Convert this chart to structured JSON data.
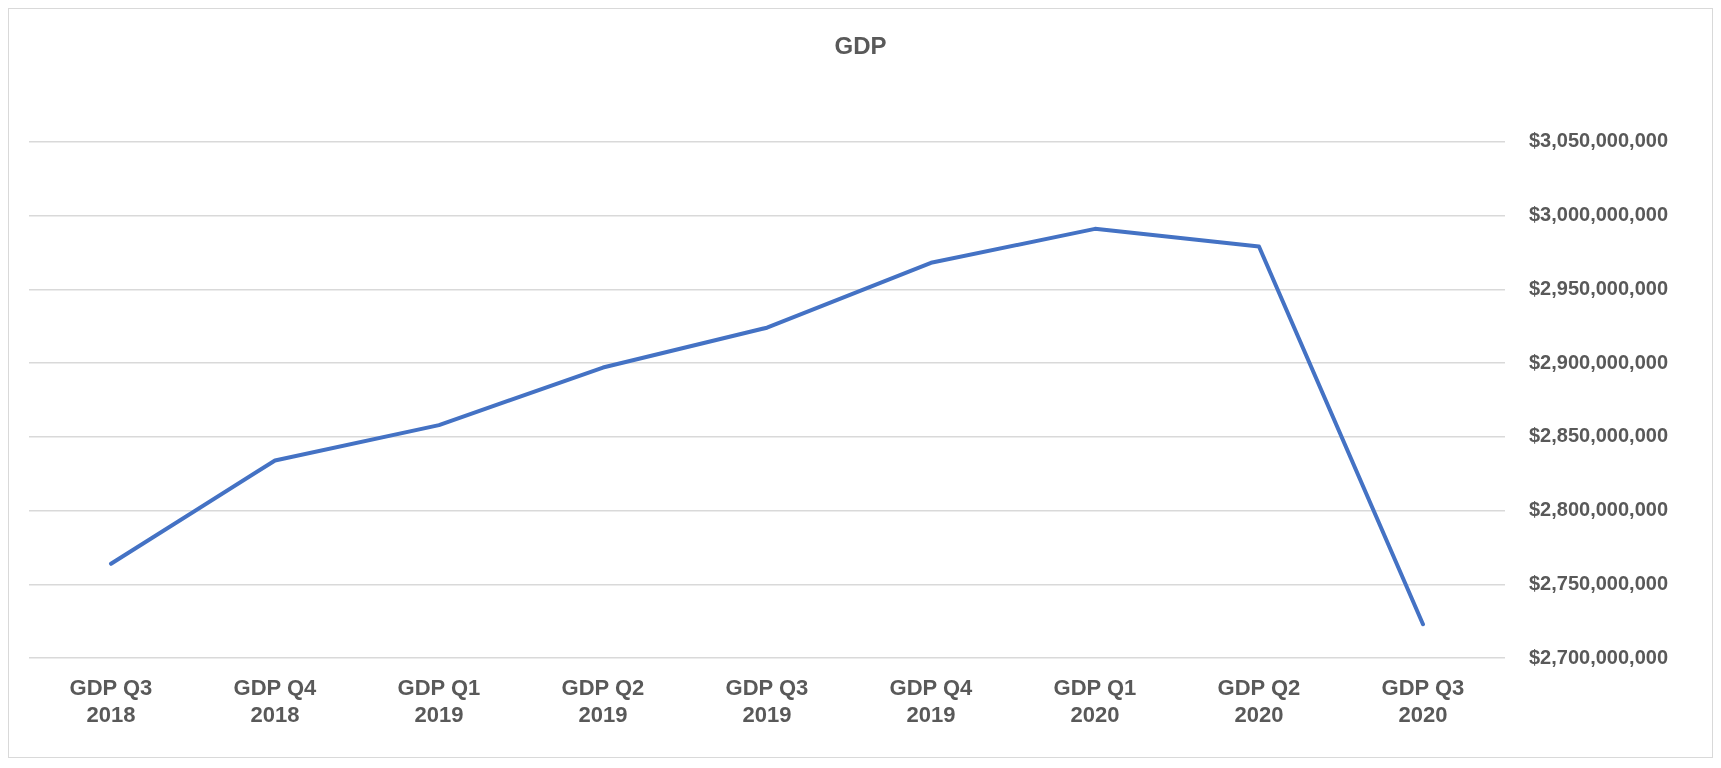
{
  "chart_data": {
    "type": "line",
    "title": "GDP",
    "categories": [
      "GDP Q3 2018",
      "GDP Q4 2018",
      "GDP Q1 2019",
      "GDP Q2 2019",
      "GDP Q3 2019",
      "GDP Q4 2019",
      "GDP Q1 2020",
      "GDP Q2 2020",
      "GDP Q3 2020"
    ],
    "series": [
      {
        "color": "#4472c4",
        "values": [
          2764000000,
          2834000000,
          2858000000,
          2897000000,
          2924000000,
          2968000000,
          2991000000,
          2979000000,
          2723000000
        ]
      }
    ],
    "ylim": [
      2700000000,
      3050000000
    ],
    "yticks": [
      {
        "value": 2700000000,
        "label": "$2,700,000,000"
      },
      {
        "value": 2750000000,
        "label": "$2,750,000,000"
      },
      {
        "value": 2800000000,
        "label": "$2,800,000,000"
      },
      {
        "value": 2850000000,
        "label": "$2,850,000,000"
      },
      {
        "value": 2900000000,
        "label": "$2,900,000,000"
      },
      {
        "value": 2950000000,
        "label": "$2,950,000,000"
      },
      {
        "value": 3000000000,
        "label": "$3,000,000,000"
      },
      {
        "value": 3050000000,
        "label": "$3,050,000,000"
      }
    ],
    "grid": "y",
    "legend": false,
    "marker": "none",
    "line_style": "solid"
  }
}
